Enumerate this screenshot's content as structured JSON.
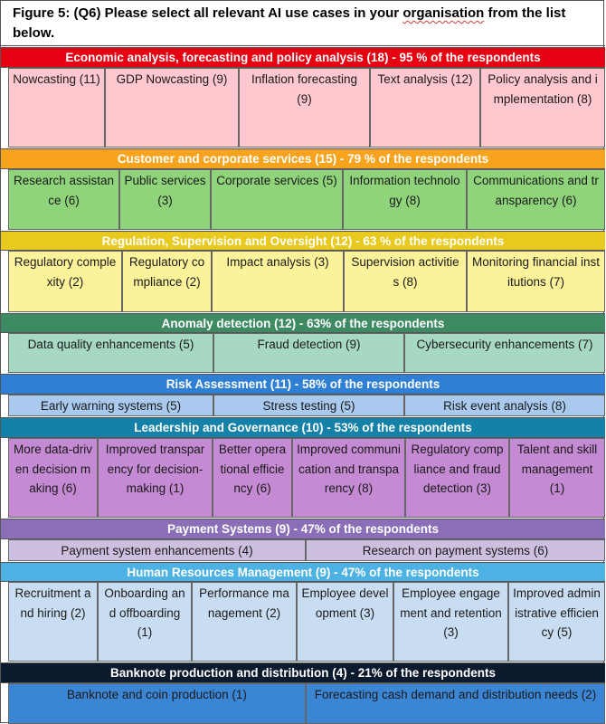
{
  "title": {
    "pre": "Figure 5: (Q6) Please select all relevant AI use cases in your ",
    "flag": "organisation",
    "post": " from the list below."
  },
  "sections": [
    {
      "header": "Economic analysis, forecasting and policy analysis (18) - 95 % of the respondents",
      "header_bg": "#e60012",
      "header_fg": "#ffffff",
      "cell_bg": "#ffc7ce",
      "items": [
        "Nowcasting (11)",
        "GDP Nowcasting (9)",
        "Inflation forecasting (9)",
        "Text analysis (12)",
        "Policy analysis and implementation (8)"
      ]
    },
    {
      "header": "Customer and corporate services (15) - 79 % of the respondents",
      "header_bg": "#f7a31e",
      "header_fg": "#ffffff",
      "cell_bg": "#8fd47a",
      "items": [
        "Research assistance (6)",
        "Public services (3)",
        "Corporate services (5)",
        "Information technology (8)",
        "Communications and transparency (6)"
      ]
    },
    {
      "header": "Regulation, Supervision and Oversight (12) - 63 % of the respondents",
      "header_bg": "#e8c91e",
      "header_fg": "#ffffff",
      "cell_bg": "#fbf29a",
      "items": [
        "Regulatory complexity (2)",
        "Regulatory compliance (2)",
        "Impact analysis (3)",
        "Supervision activities (8)",
        "Monitoring financial institutions (7)"
      ]
    },
    {
      "header": "Anomaly detection (12) - 63% of the respondents",
      "header_bg": "#3e8a63",
      "header_fg": "#ffffff",
      "cell_bg": "#a6d8c4",
      "items": [
        "Data quality enhancements (5)",
        "Fraud detection (9)",
        "Cybersecurity enhancements (7)"
      ]
    },
    {
      "header": "Risk Assessment (11) - 58% of the respondents",
      "header_bg": "#2f7fd4",
      "header_fg": "#ffffff",
      "cell_bg": "#a9c9ee",
      "items": [
        "Early warning systems (5)",
        "Stress testing (5)",
        "Risk event analysis (8)"
      ]
    },
    {
      "header": "Leadership and Governance (10) - 53% of the respondents",
      "header_bg": "#1481a8",
      "header_fg": "#ffffff",
      "cell_bg": "#c58ad4",
      "items": [
        "More data-driven decision making (6)",
        "Improved transparency for decision-making (1)",
        "Better operational efficiency (6)",
        "Improved communication and transparency (8)",
        "Regulatory compliance and fraud detection (3)",
        "Talent and skill management (1)"
      ]
    },
    {
      "header": "Payment Systems (9) - 47% of the respondents",
      "header_bg": "#8a6fb8",
      "header_fg": "#ffffff",
      "cell_bg": "#cdbfdf",
      "items": [
        "Payment system enhancements (4)",
        "Research on payment systems (6)"
      ]
    },
    {
      "header": "Human Resources Management (9) - 47% of the respondents",
      "header_bg": "#4cb1e3",
      "header_fg": "#ffffff",
      "cell_bg": "#c9ddf2",
      "items": [
        "Recruitment and hiring (2)",
        "Onboarding and offboarding (1)",
        "Performance management (2)",
        "Employee development (3)",
        "Employee engagement and retention (3)",
        "Improved administrative efficiency (5)"
      ]
    },
    {
      "header": "Banknote production and distribution (4) - 21% of the respondents",
      "header_bg": "#0c1a2e",
      "header_fg": "#ffffff",
      "cell_bg": "#3b86d4",
      "items": [
        "Banknote and coin production (1)",
        "Forecasting cash demand and distribution needs (2)"
      ]
    }
  ]
}
